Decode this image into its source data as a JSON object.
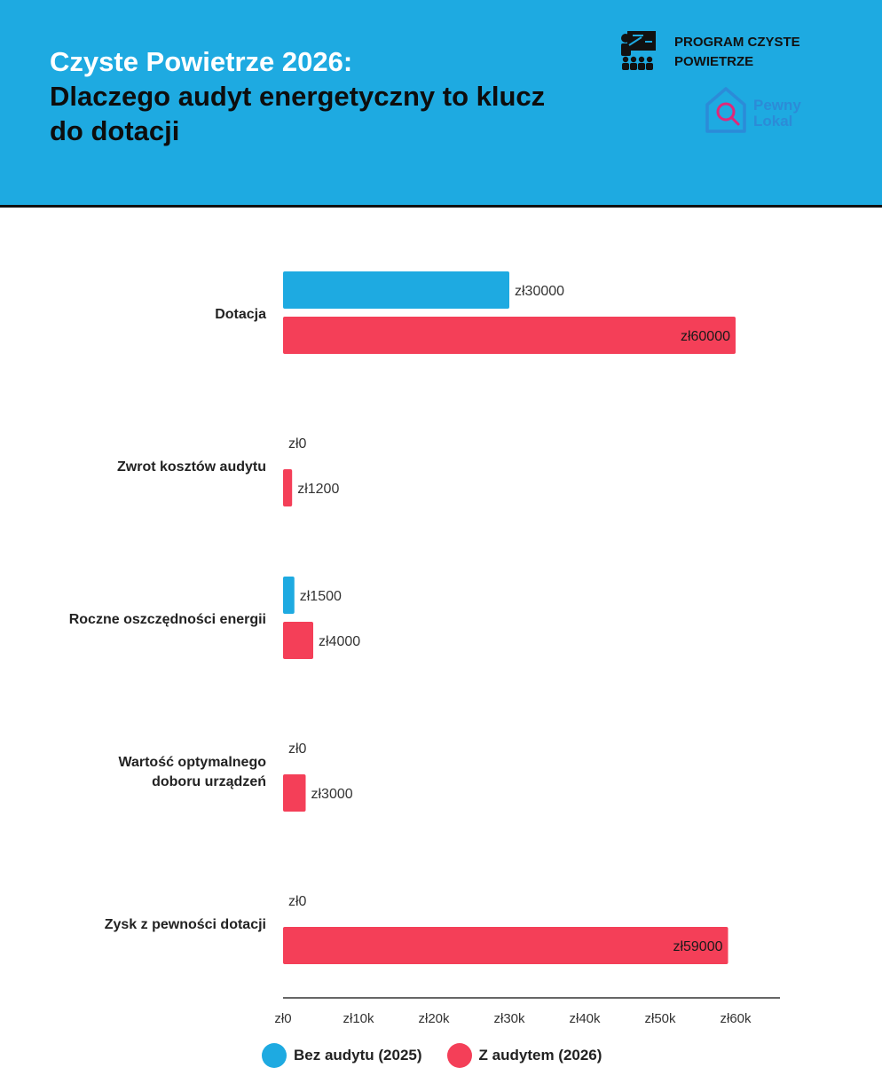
{
  "header": {
    "title_line1": "Czyste Powietrze 2026:",
    "title_line2": "Dlaczego audyt energetyczny to klucz do dotacji",
    "program_label": "PROGRAM CZYSTE POWIETRZE",
    "program_icon": "presentation-audience-icon",
    "brand_line1": "Pewny",
    "brand_line2": "Lokal",
    "brand_icon": "house-magnifier-icon",
    "background_color": "#1eaae1"
  },
  "chart_data": {
    "type": "bar",
    "orientation": "horizontal",
    "categories": [
      "Dotacja",
      "Zwrot kosztów audytu",
      "Roczne oszczędności energii",
      "Wartość optymalnego doboru urządzeń",
      "Zysk z pewności dotacji"
    ],
    "series": [
      {
        "name": "Bez audytu (2025)",
        "color": "#1eaae1",
        "values": [
          30000,
          0,
          1500,
          0,
          0
        ],
        "labels": [
          "zł30000",
          "zł0",
          "zł1500",
          "zł0",
          "zł0"
        ]
      },
      {
        "name": "Z audytem (2026)",
        "color": "#f43f58",
        "values": [
          60000,
          1200,
          4000,
          3000,
          59000
        ],
        "labels": [
          "zł60000",
          "zł1200",
          "zł4000",
          "zł3000",
          "zł59000"
        ]
      }
    ],
    "xlim": [
      0,
      66000
    ],
    "x_ticks": [
      0,
      10000,
      20000,
      30000,
      40000,
      50000,
      60000
    ],
    "x_tick_labels": [
      "zł0",
      "zł10k",
      "zł20k",
      "zł30k",
      "zł40k",
      "zł50k",
      "zł60k"
    ],
    "grid": false,
    "legend_position": "bottom"
  }
}
